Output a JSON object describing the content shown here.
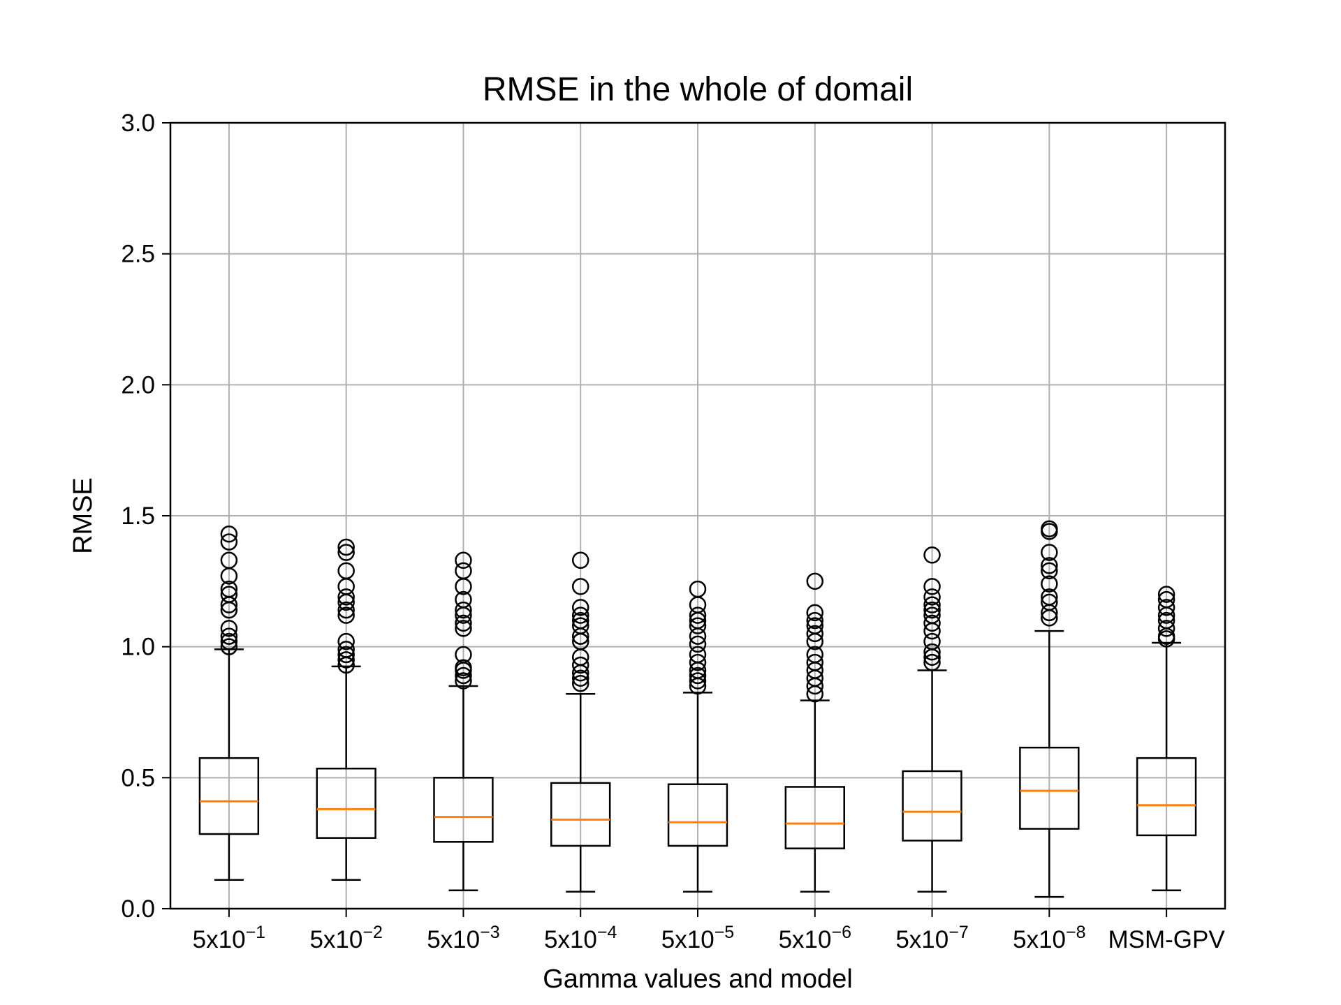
{
  "chart_data": {
    "type": "boxplot",
    "title": "RMSE in the whole of domail",
    "xlabel": "Gamma values and model",
    "ylabel": "RMSE",
    "ylim": [
      0,
      3
    ],
    "yticks": [
      "0.0",
      "0.5",
      "1.0",
      "1.5",
      "2.0",
      "2.5",
      "3.0"
    ],
    "grid": true,
    "categories": [
      {
        "base": "5x10",
        "exp": "−1",
        "label": "5x10^-1"
      },
      {
        "base": "5x10",
        "exp": "−2",
        "label": "5x10^-2"
      },
      {
        "base": "5x10",
        "exp": "−3",
        "label": "5x10^-3"
      },
      {
        "base": "5x10",
        "exp": "−4",
        "label": "5x10^-4"
      },
      {
        "base": "5x10",
        "exp": "−5",
        "label": "5x10^-5"
      },
      {
        "base": "5x10",
        "exp": "−6",
        "label": "5x10^-6"
      },
      {
        "base": "5x10",
        "exp": "−7",
        "label": "5x10^-7"
      },
      {
        "base": "5x10",
        "exp": "−8",
        "label": "5x10^-8"
      },
      {
        "base": "MSM-GPV",
        "exp": "",
        "label": "MSM-GPV"
      }
    ],
    "boxes": [
      {
        "min": 0.11,
        "q1": 0.285,
        "median": 0.41,
        "q3": 0.575,
        "max": 0.99,
        "outliers": [
          1.0,
          1.02,
          1.04,
          1.07,
          1.14,
          1.16,
          1.2,
          1.22,
          1.27,
          1.33,
          1.4,
          1.43
        ]
      },
      {
        "min": 0.11,
        "q1": 0.27,
        "median": 0.38,
        "q3": 0.535,
        "max": 0.925,
        "outliers": [
          0.93,
          0.95,
          0.97,
          0.99,
          1.02,
          1.12,
          1.14,
          1.17,
          1.19,
          1.23,
          1.29,
          1.36,
          1.38
        ]
      },
      {
        "min": 0.07,
        "q1": 0.255,
        "median": 0.35,
        "q3": 0.5,
        "max": 0.85,
        "outliers": [
          0.87,
          0.89,
          0.91,
          0.92,
          0.97,
          1.07,
          1.09,
          1.12,
          1.14,
          1.18,
          1.23,
          1.29,
          1.33
        ]
      },
      {
        "min": 0.065,
        "q1": 0.24,
        "median": 0.34,
        "q3": 0.48,
        "max": 0.82,
        "outliers": [
          0.86,
          0.88,
          0.9,
          0.93,
          0.96,
          1.02,
          1.04,
          1.08,
          1.1,
          1.12,
          1.15,
          1.23,
          1.33
        ]
      },
      {
        "min": 0.065,
        "q1": 0.24,
        "median": 0.33,
        "q3": 0.475,
        "max": 0.825,
        "outliers": [
          0.85,
          0.87,
          0.89,
          0.91,
          0.94,
          0.97,
          1.01,
          1.04,
          1.08,
          1.1,
          1.12,
          1.16,
          1.22
        ]
      },
      {
        "min": 0.065,
        "q1": 0.23,
        "median": 0.325,
        "q3": 0.465,
        "max": 0.795,
        "outliers": [
          0.82,
          0.85,
          0.88,
          0.91,
          0.94,
          0.97,
          1.02,
          1.05,
          1.08,
          1.1,
          1.13,
          1.25
        ]
      },
      {
        "min": 0.065,
        "q1": 0.26,
        "median": 0.37,
        "q3": 0.525,
        "max": 0.91,
        "outliers": [
          0.94,
          0.96,
          0.98,
          1.02,
          1.06,
          1.09,
          1.12,
          1.14,
          1.16,
          1.19,
          1.23,
          1.35
        ]
      },
      {
        "min": 0.045,
        "q1": 0.305,
        "median": 0.45,
        "q3": 0.615,
        "max": 1.06,
        "outliers": [
          1.11,
          1.13,
          1.17,
          1.19,
          1.24,
          1.29,
          1.31,
          1.36,
          1.44,
          1.45
        ]
      },
      {
        "min": 0.07,
        "q1": 0.28,
        "median": 0.395,
        "q3": 0.575,
        "max": 1.015,
        "outliers": [
          1.03,
          1.04,
          1.07,
          1.1,
          1.12,
          1.15,
          1.18,
          1.2
        ]
      }
    ],
    "colors": {
      "box": "#000000",
      "median": "#ff7f0e",
      "grid": "#b0b0b0",
      "outlier": "#000000"
    }
  }
}
